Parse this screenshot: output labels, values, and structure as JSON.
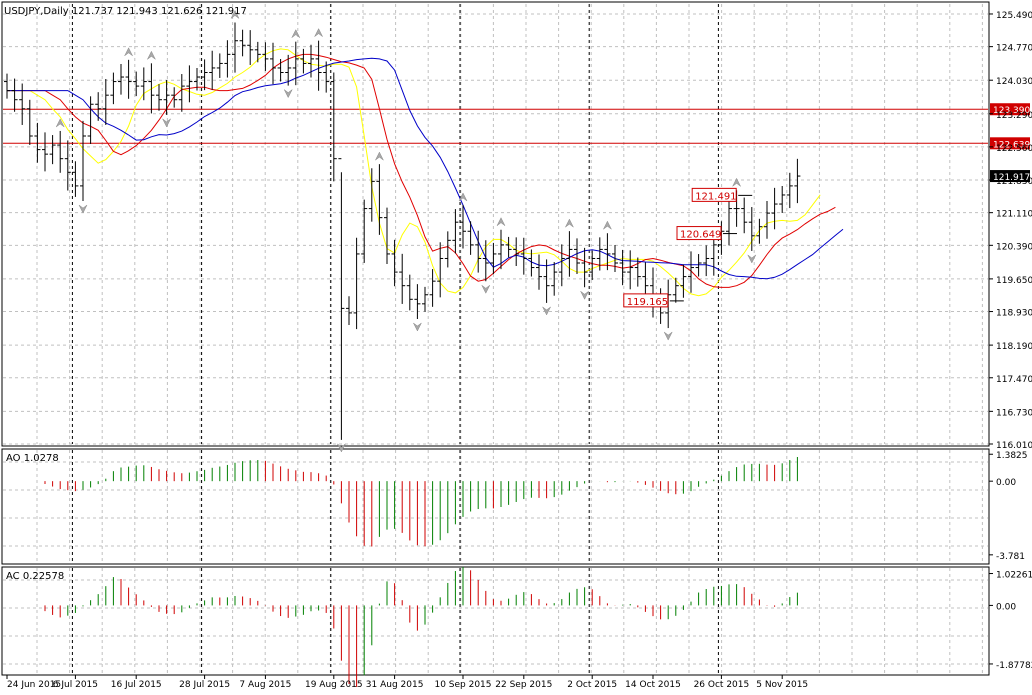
{
  "header": {
    "symbol_line": "USDJPY,Daily  121.737 121.943 121.626 121.917",
    "ao_label": "AO 1.0278",
    "ac_label": "AC 0.22578"
  },
  "colors": {
    "bg": "#ffffff",
    "grid": "#c0c0c0",
    "frame": "#000000",
    "bar": "#000000",
    "ma_fast": "#ffff00",
    "ma_mid": "#e00000",
    "ma_slow": "#0000c8",
    "hline": "#d00000",
    "up_hist": "#008000",
    "down_hist": "#d00000",
    "fractal": "#a8a8a8",
    "price_box_bg": "#ffffff",
    "price_box_text": "#d00000"
  },
  "chart_data": [
    {
      "type": "ohlc",
      "name": "price",
      "y_ticks": [
        "125.490",
        "124.770",
        "124.030",
        "123.290",
        "122.560",
        "121.830",
        "121.110",
        "120.390",
        "119.650",
        "118.930",
        "118.190",
        "117.470",
        "116.730",
        "116.010"
      ],
      "ylim": [
        116.01,
        125.71
      ],
      "x_labels": [
        "24 Jun 2015",
        "6 Jul 2015",
        "16 Jul 2015",
        "28 Jul 2015",
        "7 Aug 2015",
        "19 Aug 2015",
        "31 Aug 2015",
        "10 Sep 2015",
        "22 Sep 2015",
        "2 Oct 2015",
        "14 Oct 2015",
        "26 Oct 2015",
        "5 Nov 2015"
      ],
      "x_label_bar_index": [
        0,
        9,
        17,
        26,
        34,
        43,
        51,
        60,
        68,
        77,
        85,
        94,
        102
      ],
      "bar_count": 105,
      "close": [
        123.8,
        123.6,
        123.4,
        122.8,
        122.5,
        122.4,
        122.6,
        122.3,
        122.0,
        121.7,
        122.8,
        123.5,
        123.4,
        123.7,
        124.0,
        124.1,
        124.0,
        123.9,
        124.0,
        123.7,
        123.6,
        123.7,
        123.6,
        123.9,
        124.0,
        124.1,
        124.2,
        124.3,
        124.4,
        124.6,
        124.9,
        124.8,
        124.7,
        124.6,
        124.5,
        124.3,
        124.2,
        124.3,
        124.5,
        124.4,
        124.5,
        124.2,
        124.0,
        122.3,
        119.0,
        118.9,
        120.2,
        121.2,
        121.8,
        121.0,
        120.2,
        119.8,
        119.5,
        119.2,
        119.1,
        119.3,
        119.6,
        120.1,
        120.5,
        120.9,
        120.7,
        120.4,
        120.1,
        120.0,
        120.2,
        120.4,
        120.3,
        120.2,
        120.1,
        119.9,
        119.7,
        119.5,
        119.8,
        120.1,
        120.3,
        120.0,
        119.8,
        120.1,
        120.3,
        120.2,
        120.0,
        119.8,
        119.9,
        119.7,
        119.5,
        119.2,
        118.9,
        119.3,
        119.5,
        119.7,
        119.9,
        120.0,
        120.1,
        120.4,
        120.7,
        121.2,
        121.2,
        120.9,
        120.6,
        120.8,
        121.1,
        121.3,
        121.5,
        121.7,
        121.917
      ],
      "highs_marker_ref": [
        {
          "label": "123.390",
          "value": 123.39
        },
        {
          "label": "122.639",
          "value": 122.639
        }
      ],
      "current_price_label": "121.917",
      "current_price": 121.917,
      "annotations": [
        {
          "label": "121.491",
          "value": 121.491,
          "bar": 97
        },
        {
          "label": "120.649",
          "value": 120.649,
          "bar": 95
        },
        {
          "label": "119.165",
          "value": 119.165,
          "bar": 88
        }
      ]
    },
    {
      "type": "histogram",
      "name": "AO",
      "y_ticks": [
        "1.3825",
        "0.00",
        "-3.781"
      ],
      "ylim": [
        -4.2,
        1.6
      ]
    },
    {
      "type": "histogram",
      "name": "AC",
      "y_ticks": [
        "1.02261",
        "0.00",
        "-1.87782"
      ],
      "ylim": [
        -2.2,
        1.2
      ]
    }
  ]
}
